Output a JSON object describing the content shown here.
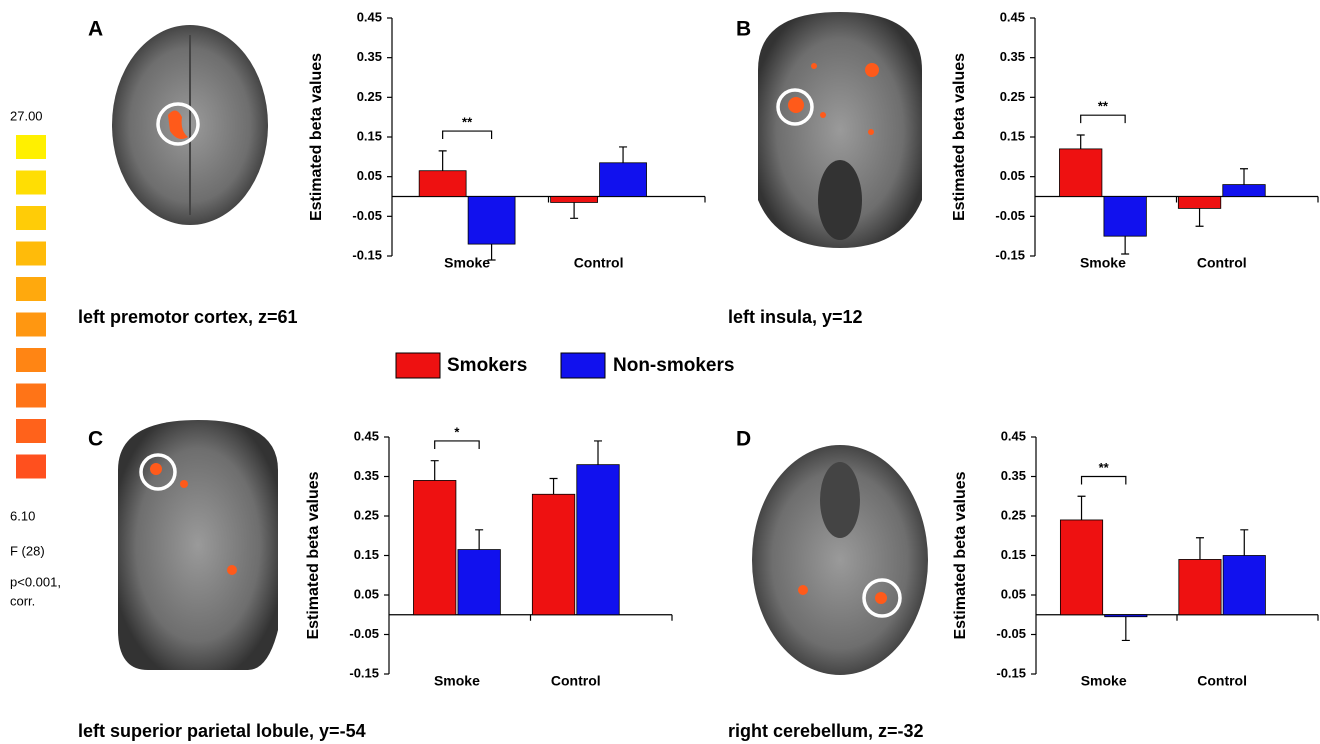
{
  "chart_data": [
    {
      "type": "bar",
      "panel": "A",
      "caption": "left premotor cortex, z=61",
      "ylabel": "Estimated beta values",
      "categories": [
        "Smoke",
        "Control"
      ],
      "series": [
        {
          "name": "Smokers",
          "color": "#ee1111",
          "values": [
            0.065,
            -0.015
          ],
          "errors": [
            0.05,
            0.04
          ]
        },
        {
          "name": "Non-smokers",
          "color": "#1111ee",
          "values": [
            -0.12,
            0.085
          ],
          "errors": [
            0.04,
            0.04
          ]
        }
      ],
      "ylim": [
        -0.15,
        0.45
      ],
      "yticks": [
        -0.15,
        -0.05,
        0.05,
        0.15,
        0.25,
        0.35,
        0.45
      ],
      "significance": "**"
    },
    {
      "type": "bar",
      "panel": "B",
      "caption": "left insula, y=12",
      "ylabel": "Estimated beta values",
      "categories": [
        "Smoke",
        "Control"
      ],
      "series": [
        {
          "name": "Smokers",
          "color": "#ee1111",
          "values": [
            0.12,
            -0.03
          ],
          "errors": [
            0.035,
            0.045
          ]
        },
        {
          "name": "Non-smokers",
          "color": "#1111ee",
          "values": [
            -0.1,
            0.03
          ],
          "errors": [
            0.045,
            0.04
          ]
        }
      ],
      "ylim": [
        -0.15,
        0.45
      ],
      "yticks": [
        -0.15,
        -0.05,
        0.05,
        0.15,
        0.25,
        0.35,
        0.45
      ],
      "significance": "**"
    },
    {
      "type": "bar",
      "panel": "C",
      "caption": "left superior parietal lobule, y=-54",
      "ylabel": "Estimated beta values",
      "categories": [
        "Smoke",
        "Control"
      ],
      "series": [
        {
          "name": "Smokers",
          "color": "#ee1111",
          "values": [
            0.34,
            0.305
          ],
          "errors": [
            0.05,
            0.04
          ]
        },
        {
          "name": "Non-smokers",
          "color": "#1111ee",
          "values": [
            0.165,
            0.38
          ],
          "errors": [
            0.05,
            0.06
          ]
        }
      ],
      "ylim": [
        -0.15,
        0.45
      ],
      "yticks": [
        -0.15,
        -0.05,
        0.05,
        0.15,
        0.25,
        0.35,
        0.45
      ],
      "significance": "*"
    },
    {
      "type": "bar",
      "panel": "D",
      "caption": "right cerebellum, z=-32",
      "ylabel": "Estimated beta values",
      "categories": [
        "Smoke",
        "Control"
      ],
      "series": [
        {
          "name": "Smokers",
          "color": "#ee1111",
          "values": [
            0.24,
            0.14
          ],
          "errors": [
            0.06,
            0.055
          ]
        },
        {
          "name": "Non-smokers",
          "color": "#1111ee",
          "values": [
            -0.005,
            0.15
          ],
          "errors": [
            0.06,
            0.065
          ]
        }
      ],
      "ylim": [
        -0.15,
        0.45
      ],
      "yticks": [
        -0.15,
        -0.05,
        0.05,
        0.15,
        0.25,
        0.35,
        0.45
      ],
      "significance": "**"
    }
  ],
  "color_scale": {
    "max_label": "27.00",
    "min_label": "6.10",
    "statistic": "F (28)",
    "threshold": [
      "p<0.001,",
      "corr."
    ]
  }
}
